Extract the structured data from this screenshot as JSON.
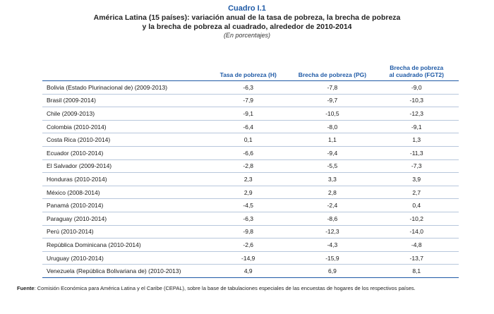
{
  "header": {
    "cuadro": "Cuadro I.1",
    "title_line1": "América Latina (15 países): variación anual de la tasa de pobreza, la brecha de pobreza",
    "title_line2": "y la brecha de pobreza al cuadrado, alrededor de 2010-2014",
    "units": "(En porcentajes)"
  },
  "table": {
    "columns": [
      "",
      "Tasa de pobreza (H)",
      "Brecha de pobreza (PG)",
      "Brecha de pobreza al cuadrado (FGT2)"
    ],
    "column3_line1": "Brecha de pobreza",
    "column3_line2": "al cuadrado (FGT2)",
    "rows": [
      {
        "country": "Bolivia (Estado Plurinacional de) (2009-2013)",
        "h": "-6,3",
        "pg": "-7,8",
        "fgt2": "-9,0"
      },
      {
        "country": "Brasil (2009-2014)",
        "h": "-7,9",
        "pg": "-9,7",
        "fgt2": "-10,3"
      },
      {
        "country": "Chile (2009-2013)",
        "h": "-9,1",
        "pg": "-10,5",
        "fgt2": "-12,3"
      },
      {
        "country": "Colombia (2010-2014)",
        "h": "-6,4",
        "pg": "-8,0",
        "fgt2": "-9,1"
      },
      {
        "country": "Costa Rica (2010-2014)",
        "h": "0,1",
        "pg": "1,1",
        "fgt2": "1,3"
      },
      {
        "country": "Ecuador (2010-2014)",
        "h": "-6,6",
        "pg": "-9,4",
        "fgt2": "-11,3"
      },
      {
        "country": "El Salvador (2009-2014)",
        "h": "-2,8",
        "pg": "-5,5",
        "fgt2": "-7,3"
      },
      {
        "country": "Honduras (2010-2014)",
        "h": "2,3",
        "pg": "3,3",
        "fgt2": "3,9"
      },
      {
        "country": "México (2008-2014)",
        "h": "2,9",
        "pg": "2,8",
        "fgt2": "2,7"
      },
      {
        "country": "Panamá (2010-2014)",
        "h": "-4,5",
        "pg": "-2,4",
        "fgt2": "0,4"
      },
      {
        "country": "Paraguay (2010-2014)",
        "h": "-6,3",
        "pg": "-8,6",
        "fgt2": "-10,2"
      },
      {
        "country": "Perú (2010-2014)",
        "h": "-9,8",
        "pg": "-12,3",
        "fgt2": "-14,0"
      },
      {
        "country": "República Dominicana (2010-2014)",
        "h": "-2,6",
        "pg": "-4,3",
        "fgt2": "-4,8"
      },
      {
        "country": "Uruguay (2010-2014)",
        "h": "-14,9",
        "pg": "-15,9",
        "fgt2": "-13,7"
      },
      {
        "country": "Venezuela (República Bolivariana de) (2010-2013)",
        "h": "4,9",
        "pg": "6,9",
        "fgt2": "8,1"
      }
    ]
  },
  "source": {
    "label": "Fuente",
    "text": ":  Comisión Económica para América Latina y el Caribe (CEPAL), sobre la base de tabulaciones especiales de las encuestas de hogares de los respectivos países."
  },
  "colors": {
    "accent": "#1f5aa6",
    "rule": "#b8c7dc"
  }
}
